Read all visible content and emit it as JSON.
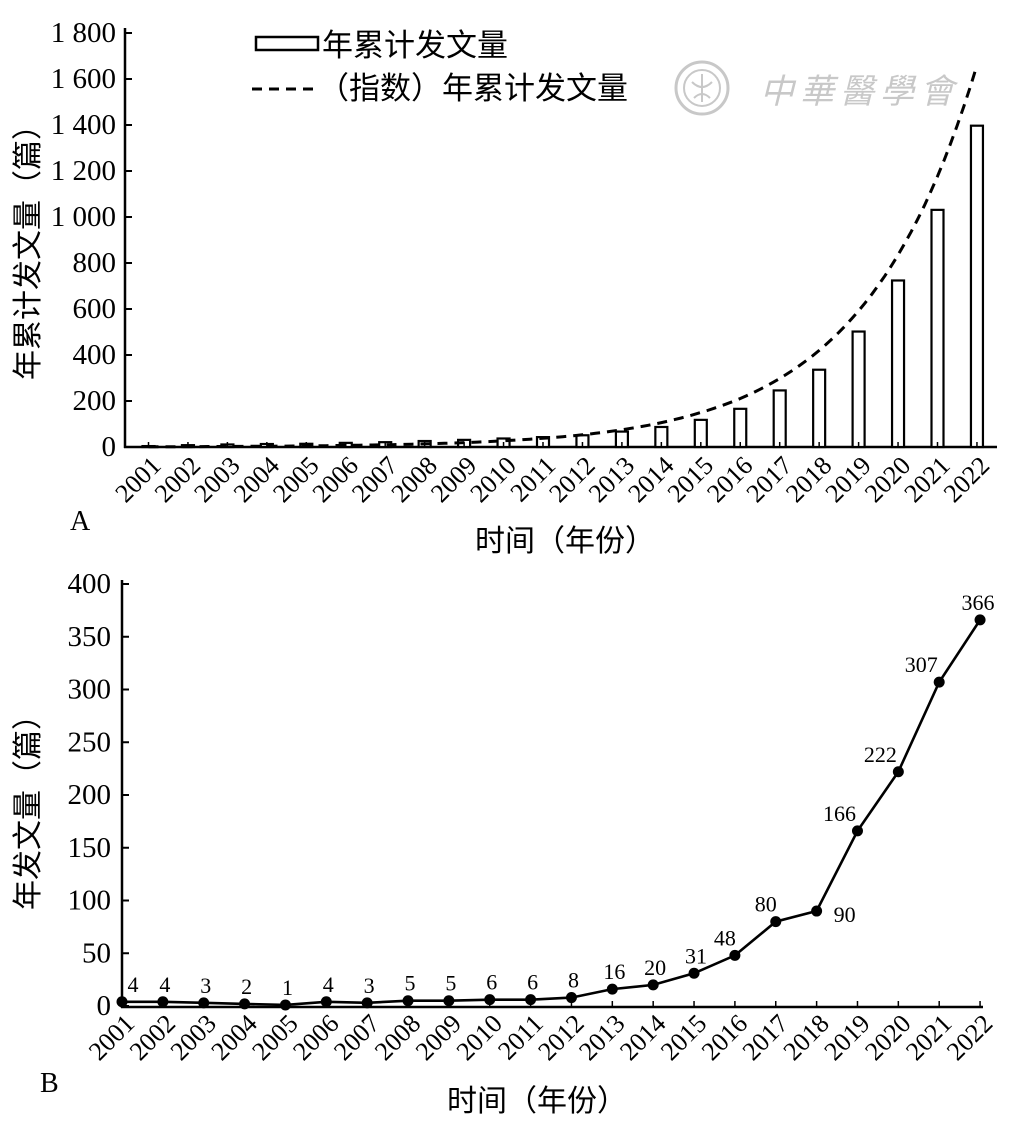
{
  "figure": {
    "panel_a_letter": "A",
    "panel_b_letter": "B",
    "watermark": "中華醫學會"
  },
  "colors": {
    "ink": "#000000",
    "bar_fill": "#ffffff",
    "watermark": "#c8c8c8"
  },
  "chart_data": [
    {
      "panel": "A",
      "type": "bar",
      "categories": [
        "2001",
        "2002",
        "2003",
        "2004",
        "2005",
        "2006",
        "2007",
        "2008",
        "2009",
        "2010",
        "2011",
        "2012",
        "2013",
        "2014",
        "2015",
        "2016",
        "2017",
        "2018",
        "2019",
        "2020",
        "2021",
        "2022"
      ],
      "series": [
        {
          "name": "年累计发文量",
          "type": "bar",
          "values": [
            4,
            8,
            11,
            13,
            14,
            18,
            21,
            26,
            31,
            37,
            43,
            51,
            67,
            87,
            118,
            166,
            246,
            336,
            502,
            724,
            1031,
            1397
          ]
        },
        {
          "name": "（指数）年累计发文量",
          "type": "line",
          "style": "dashed",
          "values": [
            1.2,
            1.7,
            2.4,
            3.4,
            4.8,
            6.8,
            9.6,
            13.5,
            19,
            27,
            38,
            53,
            75,
            106,
            150,
            211,
            298,
            420,
            592,
            835,
            1177,
            1660
          ]
        }
      ],
      "xlabel": "时间（年份）",
      "ylabel": "年累计发文量（篇）",
      "ylim": [
        0,
        1800
      ],
      "yticks": [
        "0",
        "200",
        "400",
        "600",
        "800",
        "1 000",
        "1 200",
        "1 400",
        "1 600",
        "1 800"
      ],
      "legend": "top-center",
      "grid": false
    },
    {
      "panel": "B",
      "type": "line",
      "categories": [
        "2001",
        "2002",
        "2003",
        "2004",
        "2005",
        "2006",
        "2007",
        "2008",
        "2009",
        "2010",
        "2011",
        "2012",
        "2013",
        "2014",
        "2015",
        "2016",
        "2017",
        "2018",
        "2019",
        "2020",
        "2021",
        "2022"
      ],
      "values": [
        4,
        4,
        3,
        2,
        1,
        4,
        3,
        5,
        5,
        6,
        6,
        8,
        16,
        20,
        31,
        48,
        80,
        90,
        166,
        222,
        307,
        366
      ],
      "markers": "filled-circle",
      "data_labels": true,
      "xlabel": "时间（年份）",
      "ylabel": "年发文量（篇）",
      "ylim": [
        0,
        400
      ],
      "yticks": [
        "0",
        "50",
        "100",
        "150",
        "200",
        "250",
        "300",
        "350",
        "400"
      ],
      "grid": false
    }
  ]
}
